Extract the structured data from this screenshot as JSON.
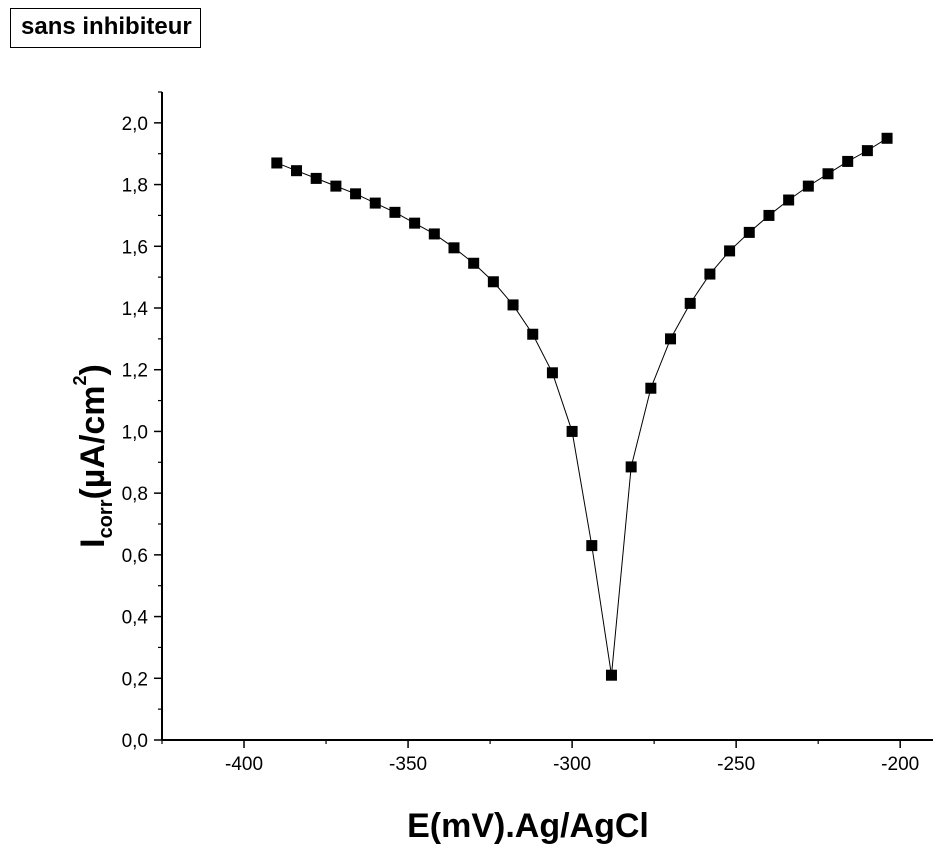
{
  "chart_data": {
    "type": "scatter",
    "title": "sans inhibiteur",
    "xlabel": "E(mV).Ag/AgCl",
    "ylabel": {
      "main": "I",
      "sub": "corr",
      "unit_before": "(µA/cm",
      "sup": "2",
      "unit_after": ")"
    },
    "xlim": [
      -425,
      -190
    ],
    "ylim": [
      0.0,
      2.1
    ],
    "xticks": [
      -400,
      -350,
      -300,
      -250,
      -200
    ],
    "xtick_labels": [
      "-400",
      "-350",
      "-300",
      "-250",
      "-200"
    ],
    "yticks": [
      0.0,
      0.2,
      0.4,
      0.6,
      0.8,
      1.0,
      1.2,
      1.4,
      1.6,
      1.8,
      2.0
    ],
    "ytick_labels": [
      "0,0",
      "0,2",
      "0,4",
      "0,6",
      "0,8",
      "1,0",
      "1,2",
      "1,4",
      "1,6",
      "1,8",
      "2,0"
    ],
    "grid": false,
    "marker": "square",
    "colors": {
      "marker": "#000000",
      "line": "#000000"
    },
    "x": [
      -390,
      -384,
      -378,
      -372,
      -366,
      -360,
      -354,
      -348,
      -342,
      -336,
      -330,
      -324,
      -318,
      -312,
      -306,
      -300,
      -294,
      -288,
      -282,
      -276,
      -270,
      -264,
      -258,
      -252,
      -246,
      -240,
      -234,
      -228,
      -222,
      -216,
      -210,
      -204
    ],
    "y": [
      1.87,
      1.845,
      1.82,
      1.795,
      1.77,
      1.74,
      1.71,
      1.675,
      1.64,
      1.595,
      1.545,
      1.485,
      1.41,
      1.315,
      1.19,
      1.0,
      0.63,
      0.21,
      0.885,
      1.14,
      1.3,
      1.415,
      1.51,
      1.585,
      1.645,
      1.7,
      1.75,
      1.795,
      1.835,
      1.875,
      1.91,
      1.95
    ]
  }
}
